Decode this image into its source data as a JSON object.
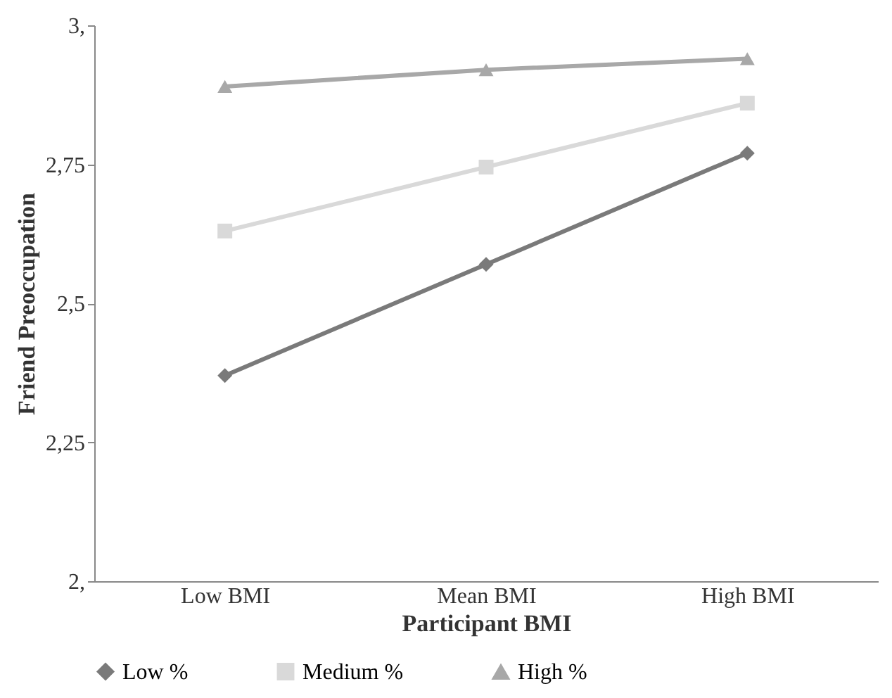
{
  "chart_data": {
    "type": "line",
    "xlabel": "Participant BMI",
    "ylabel": "Friend Preoccupation",
    "categories": [
      "Low BMI",
      "Mean BMI",
      "High BMI"
    ],
    "series": [
      {
        "name": "Low %",
        "color": "#7a7a7a",
        "marker": "diamond",
        "values": [
          2.37,
          2.57,
          2.77
        ]
      },
      {
        "name": "Medium %",
        "color": "#d9d9d9",
        "marker": "square",
        "values": [
          2.63,
          2.745,
          2.86
        ]
      },
      {
        "name": "High %",
        "color": "#a8a8a8",
        "marker": "triangle",
        "values": [
          2.89,
          2.92,
          2.94
        ]
      }
    ],
    "ylim": [
      2,
      3
    ],
    "yticks": [
      {
        "value": 2,
        "label": "2,"
      },
      {
        "value": 2.25,
        "label": "2,25"
      },
      {
        "value": 2.5,
        "label": "2,5"
      },
      {
        "value": 2.75,
        "label": "2,75"
      },
      {
        "value": 3,
        "label": "3,"
      }
    ],
    "grid": false,
    "legend": "bottom",
    "line_style": "solid"
  }
}
